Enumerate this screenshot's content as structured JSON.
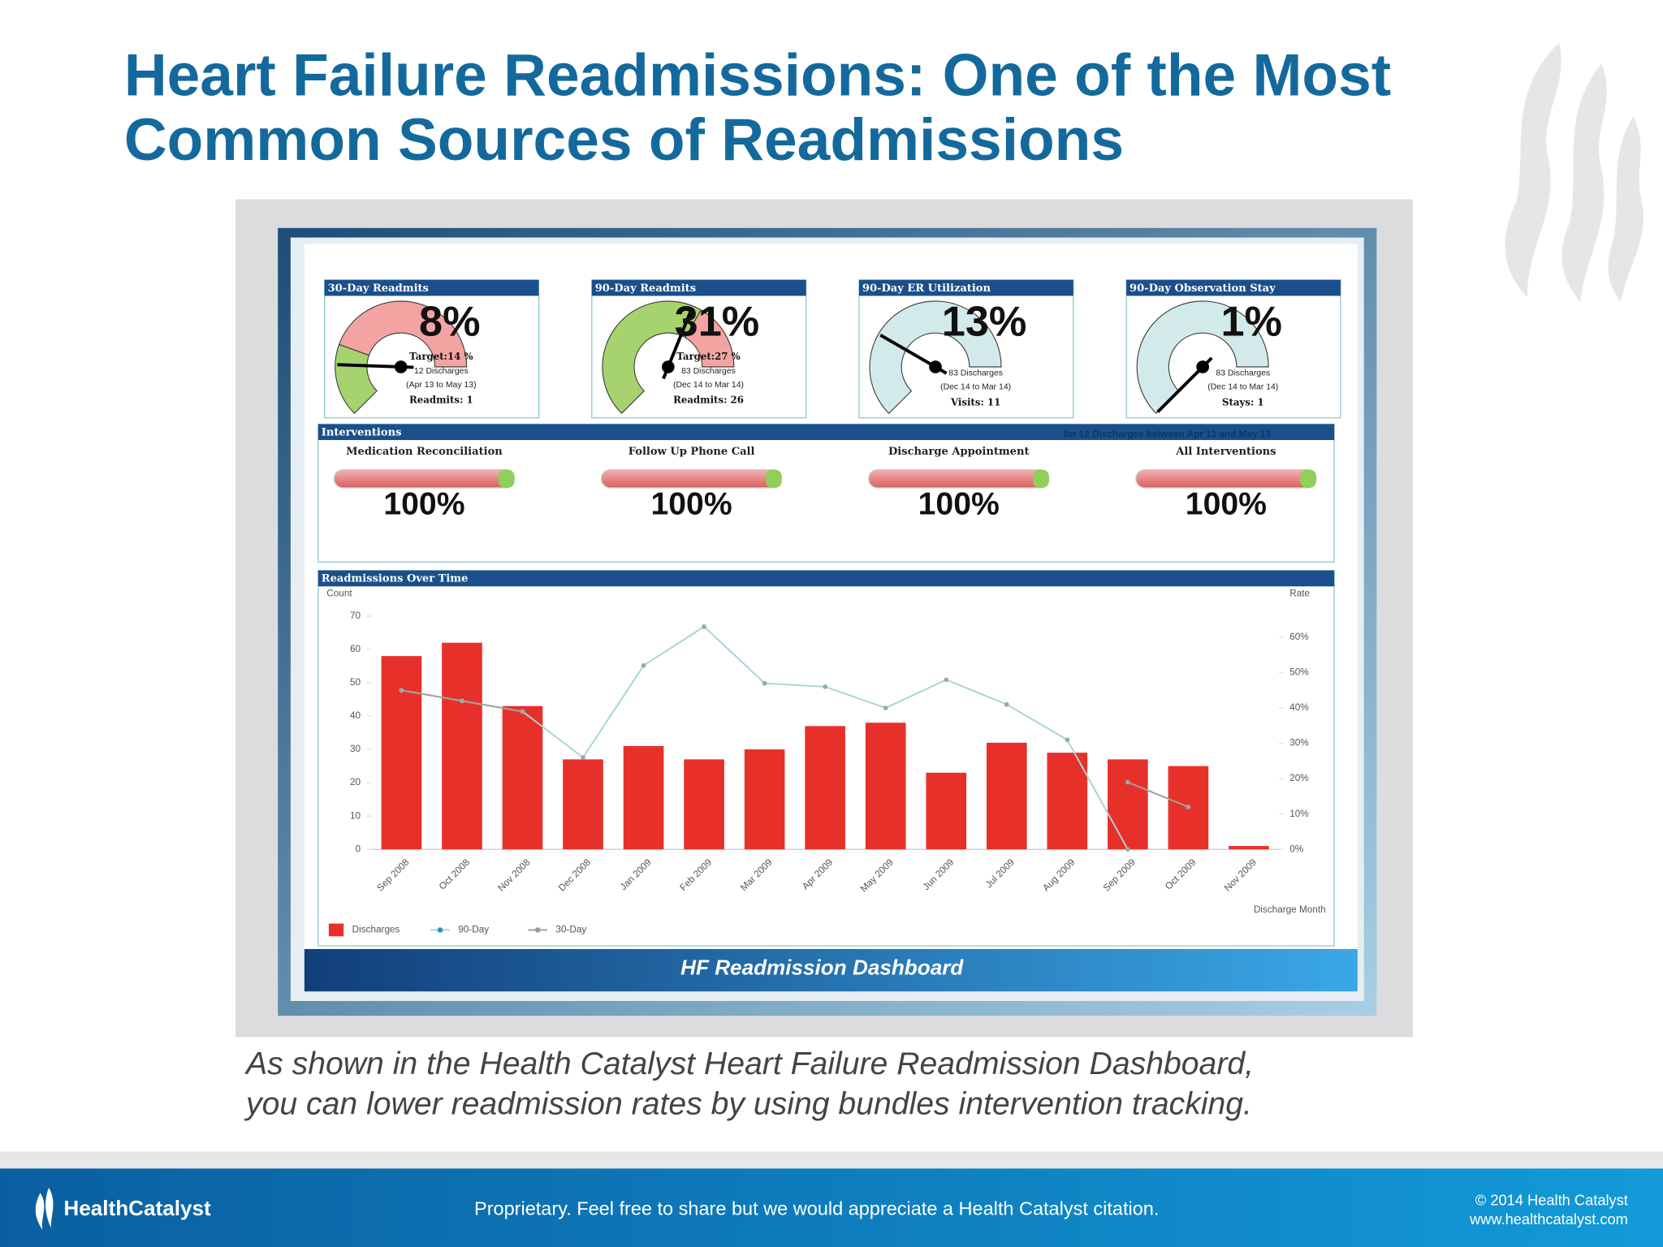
{
  "header": {
    "title_lines": [
      "Heart Failure Readmissions: One of the Most",
      "Common Sources of Readmissions"
    ]
  },
  "dashboard": {
    "gauges": [
      {
        "title": "30-Day Readmits",
        "value": "8%",
        "lines": [
          "Target:14 %",
          "12 Discharges",
          "(Apr 13 to May 13)",
          "Readmits: 1"
        ]
      },
      {
        "title": "90-Day Readmits",
        "value": "31%",
        "lines": [
          "Target:27 %",
          "83 Discharges",
          "(Dec 14 to Mar 14)",
          "Readmits: 26"
        ]
      },
      {
        "title": "90-Day ER Utilization",
        "value": "13%",
        "lines": [
          "83 Discharges",
          "(Dec 14 to Mar 14)",
          "Visits: 11"
        ]
      },
      {
        "title": "90-Day Observation Stay",
        "value": "1%",
        "lines": [
          "83 Discharges",
          "(Dec 14 to Mar 14)",
          "Stays: 1"
        ]
      }
    ],
    "interventions": {
      "title": "Interventions",
      "note": "for 12 Discharges between Apr 13 and May 13",
      "items": [
        {
          "label": "Medication Reconciliation",
          "value": "100%"
        },
        {
          "label": "Follow Up Phone Call",
          "value": "100%"
        },
        {
          "label": "Discharge Appointment",
          "value": "100%"
        },
        {
          "label": "All Interventions",
          "value": "100%"
        }
      ]
    },
    "footer": "HF Readmission Dashboard"
  },
  "chart_data": {
    "type": "bar",
    "title": "Readmissions Over Time",
    "y_label": "Count",
    "y2_label": "Rate",
    "x_label": "Discharge Month",
    "categories": [
      "Sep 2008",
      "Oct 2008",
      "Nov 2008",
      "Dec 2008",
      "Jan 2009",
      "Feb 2009",
      "Mar 2009",
      "Apr 2009",
      "May 2009",
      "Jun 2009",
      "Jul 2009",
      "Aug 2009",
      "Sep 2009",
      "Oct 2009",
      "Nov 2009"
    ],
    "series": [
      {
        "name": "Discharges",
        "color": "#e8302a",
        "values": [
          58,
          62,
          43,
          27,
          31,
          27,
          30,
          37,
          38,
          23,
          32,
          29,
          27,
          25,
          1
        ]
      },
      {
        "name": "90-Day",
        "type": "line",
        "axis": "y2",
        "color": "#a8d4d8",
        "values": [
          45,
          42,
          39,
          26,
          52,
          63,
          47,
          46,
          40,
          48,
          41,
          31,
          0,
          null,
          null
        ]
      },
      {
        "name": "30-Day",
        "type": "line",
        "axis": "y2",
        "color": "#a0a0a0",
        "values": [
          45,
          42,
          39,
          null,
          null,
          null,
          null,
          null,
          null,
          null,
          null,
          null,
          19,
          12,
          null
        ]
      }
    ],
    "ylim": [
      0,
      70
    ],
    "yticks": [
      0,
      10,
      20,
      30,
      40,
      50,
      60,
      70
    ],
    "y2lim": [
      0,
      66
    ],
    "y2ticks": [
      {
        "value": 0,
        "label": "0%"
      },
      {
        "value": 10,
        "label": "10%"
      },
      {
        "value": 20,
        "label": "20%"
      },
      {
        "value": 30,
        "label": "30%"
      },
      {
        "value": 40,
        "label": "40%"
      },
      {
        "value": 50,
        "label": "50%"
      },
      {
        "value": 60,
        "label": "60%"
      }
    ]
  },
  "caption": [
    "As shown in the Health Catalyst Heart Failure Readmission Dashboard,",
    "you can lower readmission rates by using bundles intervention tracking."
  ],
  "footer": {
    "logo": "HealthCatalyst",
    "notice": "Proprietary. Feel free to share but we would appreciate a Health Catalyst citation.",
    "copyright": "© 2014 Health Catalyst",
    "url": "www.healthcatalyst.com"
  }
}
